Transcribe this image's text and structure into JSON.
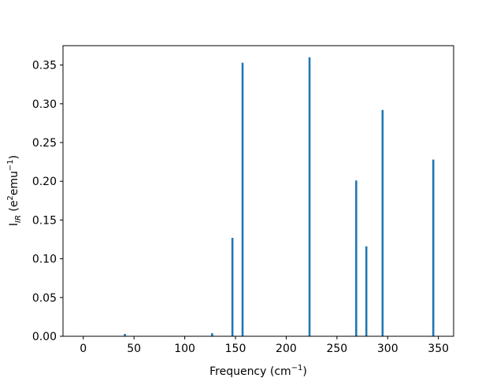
{
  "chart_data": {
    "type": "bar",
    "title": "",
    "xlabel": {
      "main": "Frequency (cm",
      "sup": "−1",
      "tail": ")"
    },
    "ylabel": {
      "main": "I",
      "sub": "IR",
      "mid": " (e",
      "sup1": "2",
      "mid2": "emu",
      "sup2": "−1",
      "tail": ")"
    },
    "xlim": [
      -20,
      365
    ],
    "ylim": [
      0,
      0.375
    ],
    "xticks": [
      0,
      50,
      100,
      150,
      200,
      250,
      300,
      350
    ],
    "xtick_labels": [
      "0",
      "50",
      "100",
      "150",
      "200",
      "250",
      "300",
      "350"
    ],
    "yticks": [
      0.0,
      0.05,
      0.1,
      0.15,
      0.2,
      0.25,
      0.3,
      0.35
    ],
    "ytick_labels": [
      "0.00",
      "0.05",
      "0.10",
      "0.15",
      "0.20",
      "0.25",
      "0.30",
      "0.35"
    ],
    "bar_width": 2.0,
    "color": "#1f77b4",
    "x": [
      41,
      127,
      147,
      157,
      223,
      269,
      279,
      295,
      345
    ],
    "values": [
      0.003,
      0.004,
      0.127,
      0.353,
      0.36,
      0.201,
      0.116,
      0.292,
      0.228
    ],
    "grid": false,
    "legend": "none"
  }
}
